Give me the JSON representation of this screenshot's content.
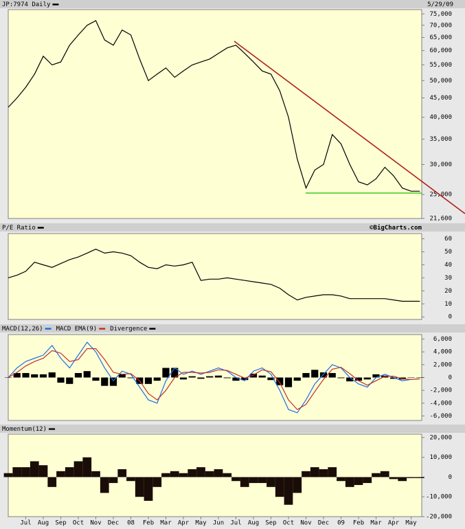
{
  "chart_data": [
    {
      "type": "line",
      "date": "5/29/09",
      "log_scale": true,
      "grid": false,
      "series": [
        {
          "name": "JP:7974 Daily",
          "color": "#000000",
          "values": [
            42500,
            45000,
            48000,
            52000,
            58000,
            55000,
            56000,
            62000,
            66000,
            70000,
            72000,
            64000,
            62000,
            68000,
            66000,
            57000,
            50000,
            52000,
            54000,
            51000,
            53000,
            55000,
            56000,
            57000,
            59000,
            61000,
            62000,
            59000,
            56000,
            53000,
            52000,
            47000,
            40000,
            31000,
            26000,
            29000,
            30000,
            36000,
            34000,
            30000,
            27000,
            26500,
            27500,
            29500,
            28000,
            26000,
            25500,
            25500
          ]
        }
      ],
      "ylim": [
        21600,
        77000
      ],
      "yticks": [
        {
          "value": 21600,
          "label": "21,600"
        },
        {
          "value": 25000,
          "label": "25,000"
        },
        {
          "value": 30000,
          "label": "30,000"
        },
        {
          "value": 35000,
          "label": "35,000"
        },
        {
          "value": 40000,
          "label": "40,000"
        },
        {
          "value": 45000,
          "label": "45,000"
        },
        {
          "value": 50000,
          "label": "50,000"
        },
        {
          "value": 55000,
          "label": "55,000"
        },
        {
          "value": 60000,
          "label": "60,000"
        },
        {
          "value": 65000,
          "label": "65,000"
        },
        {
          "value": 70000,
          "label": "70,000"
        },
        {
          "value": 75000,
          "label": "75,000"
        }
      ]
    },
    {
      "type": "line",
      "source": "©BigCharts.com",
      "grid": false,
      "series": [
        {
          "name": "P/E Ratio",
          "color": "#000000",
          "values": [
            30,
            32,
            35,
            42,
            40,
            38,
            41,
            44,
            46,
            49,
            52,
            49,
            50,
            49,
            47,
            42,
            38,
            37,
            40,
            39,
            40,
            42,
            28,
            29,
            29,
            30,
            29,
            28,
            27,
            26,
            25,
            22,
            17,
            13,
            15,
            16,
            17,
            17,
            16,
            14,
            14,
            14,
            14,
            14,
            13,
            12,
            12,
            12
          ]
        }
      ],
      "ylim": [
        -2,
        64
      ],
      "yticks": [
        0,
        10,
        20,
        30,
        40,
        50,
        60
      ]
    },
    {
      "type": "combo",
      "grid": false,
      "series": [
        {
          "name": "MACD(12,26)",
          "color": "#1e6fe6",
          "kind": "line",
          "values": [
            0,
            1500,
            2500,
            3000,
            3500,
            5000,
            3000,
            1500,
            3500,
            5500,
            4000,
            1500,
            -500,
            1000,
            500,
            -1500,
            -3500,
            -4000,
            -500,
            1500,
            500,
            1000,
            500,
            1000,
            1500,
            1000,
            0,
            -500,
            1000,
            1500,
            500,
            -2000,
            -5000,
            -5500,
            -3500,
            -1000,
            500,
            2000,
            1500,
            0,
            -1000,
            -1500,
            0,
            500,
            0,
            -500,
            -300,
            -200
          ]
        },
        {
          "name": "MACD EMA(9)",
          "color": "#c0302a",
          "kind": "line",
          "values": [
            0,
            800,
            1800,
            2500,
            3000,
            4200,
            3800,
            2500,
            2800,
            4500,
            4500,
            2800,
            800,
            500,
            600,
            -500,
            -2500,
            -3500,
            -2000,
            0,
            800,
            800,
            700,
            800,
            1200,
            1100,
            500,
            -100,
            400,
            1200,
            900,
            -800,
            -3500,
            -5000,
            -4200,
            -2200,
            -300,
            1300,
            1600,
            600,
            -500,
            -1200,
            -500,
            200,
            200,
            -200,
            -300,
            -200
          ]
        },
        {
          "name": "Divergence",
          "color": "#000000",
          "kind": "bar",
          "values": [
            0,
            700,
            700,
            500,
            500,
            800,
            -800,
            -1000,
            700,
            1000,
            -500,
            -1300,
            -1300,
            500,
            -100,
            -1000,
            -1000,
            -500,
            1500,
            1500,
            -300,
            200,
            -200,
            200,
            300,
            -100,
            -500,
            -400,
            600,
            300,
            -400,
            -1200,
            -1500,
            -500,
            700,
            1200,
            800,
            700,
            -100,
            -600,
            -500,
            -300,
            500,
            300,
            -200,
            -300,
            0,
            0
          ]
        }
      ],
      "ylim": [
        -6700,
        6700
      ],
      "yticks": [
        {
          "value": -6000,
          "label": "-6,000"
        },
        {
          "value": -4000,
          "label": "-4,000"
        },
        {
          "value": -2000,
          "label": "-2,000"
        },
        0,
        {
          "value": 2000,
          "label": "2,000"
        },
        {
          "value": 4000,
          "label": "4,000"
        },
        {
          "value": 6000,
          "label": "6,000"
        }
      ]
    },
    {
      "type": "bar",
      "grid": false,
      "categories": [
        null,
        null,
        "Jul",
        null,
        "Aug",
        null,
        "Sep",
        null,
        "Oct",
        null,
        "Nov",
        null,
        "Dec",
        null,
        "08",
        null,
        "Feb",
        null,
        "Mar",
        null,
        "Apr",
        null,
        "May",
        null,
        "Jun",
        null,
        "Jul",
        null,
        "Aug",
        null,
        "Sep",
        null,
        "Oct",
        null,
        "Nov",
        null,
        "Dec",
        null,
        "09",
        null,
        "Feb",
        null,
        "Mar",
        null,
        "Apr",
        null,
        "May",
        null
      ],
      "series": [
        {
          "name": "Momentum(12)",
          "color": "#1a0d08",
          "values": [
            2000,
            5000,
            5000,
            8000,
            6000,
            -5000,
            3000,
            5000,
            8000,
            10000,
            3000,
            -8000,
            -3000,
            4000,
            -2000,
            -10000,
            -12000,
            -5000,
            2000,
            3000,
            2000,
            4000,
            5000,
            3000,
            4000,
            2000,
            -2000,
            -5000,
            -3000,
            -3000,
            -5000,
            -10000,
            -14000,
            -8000,
            3000,
            5000,
            4000,
            5000,
            -2000,
            -5000,
            -4000,
            -3000,
            2000,
            3000,
            -1000,
            -2000,
            -500,
            -500
          ]
        }
      ],
      "ylim": [
        -20000,
        21700
      ],
      "yticks": [
        {
          "value": -20000,
          "label": "-20,000"
        },
        {
          "value": -10000,
          "label": "-10,000"
        },
        0,
        {
          "value": 10000,
          "label": "10,000"
        },
        {
          "value": 20000,
          "label": "20,000"
        }
      ]
    }
  ]
}
